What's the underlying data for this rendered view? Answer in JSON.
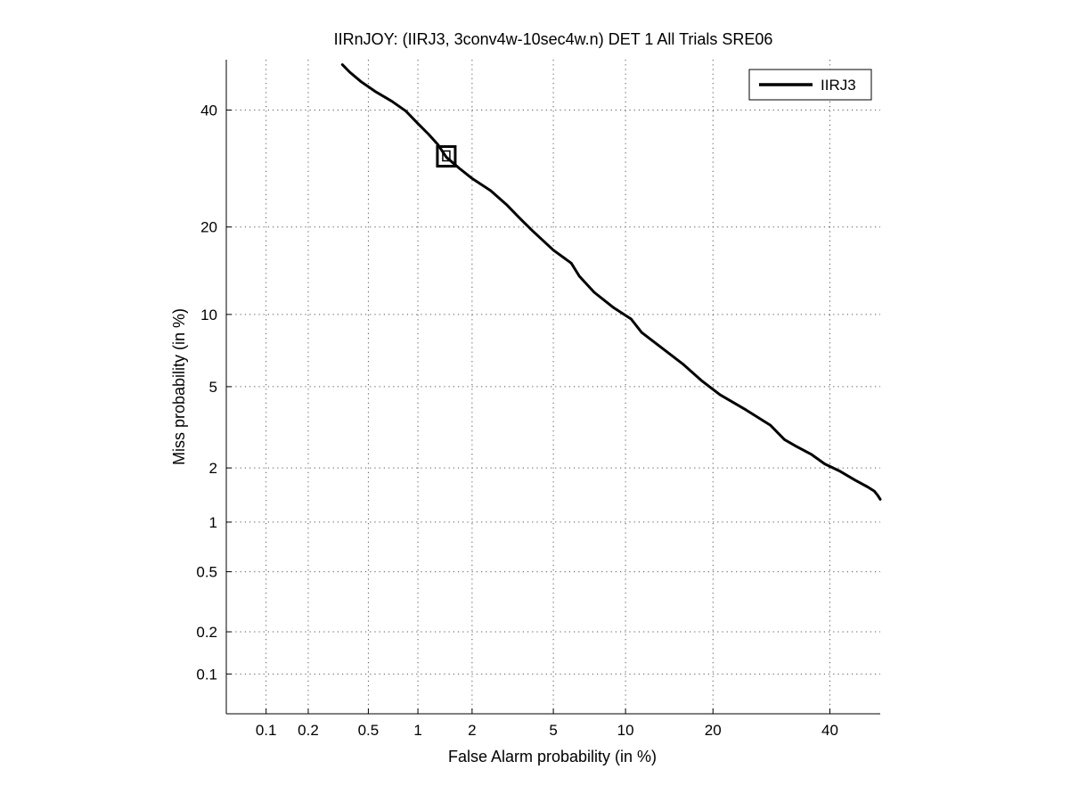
{
  "chart_data": {
    "type": "line",
    "title": "IIRnJOY: (IIRJ3, 3conv4w-10sec4w.n) DET 1 All Trials SRE06",
    "xlabel": "False Alarm probability (in %)",
    "ylabel": "Miss probability (in %)",
    "scale": "normal-deviate (probit) on both axes",
    "xlim": [
      0.05,
      50
    ],
    "ylim": [
      0.05,
      50
    ],
    "x_ticks": [
      0.1,
      0.2,
      0.5,
      1,
      2,
      5,
      10,
      20,
      40
    ],
    "x_tick_labels": [
      "0.1",
      "0.2",
      "0.5",
      "1",
      "2",
      "5",
      "10",
      "20",
      "40"
    ],
    "y_ticks": [
      0.1,
      0.2,
      0.5,
      1,
      2,
      5,
      10,
      20,
      40
    ],
    "y_tick_labels": [
      "0.1",
      "0.2",
      "0.5",
      "1",
      "2",
      "5",
      "10",
      "20",
      "40"
    ],
    "grid": true,
    "grid_style": "dotted",
    "legend_position": "top-right",
    "series": [
      {
        "name": "IIRJ3",
        "color": "#000000",
        "x": [
          0.34,
          0.38,
          0.45,
          0.55,
          0.7,
          0.85,
          1.0,
          1.15,
          1.3,
          1.45,
          1.7,
          2.0,
          2.5,
          3.0,
          3.5,
          4.0,
          5.0,
          6.0,
          6.5,
          7.5,
          9.0,
          10.5,
          11.5,
          13.5,
          16.0,
          18.5,
          21.0,
          25.0,
          29.0,
          31.5,
          33.5,
          36.5,
          39.0,
          42.0,
          45.0,
          47.5,
          48.8,
          49.5,
          50.0
        ],
        "y": [
          49.0,
          47.5,
          45.6,
          43.7,
          41.7,
          39.8,
          37.4,
          35.4,
          33.5,
          31.2,
          29.3,
          27.5,
          25.5,
          23.3,
          21.2,
          19.5,
          16.9,
          15.3,
          13.8,
          12.1,
          10.6,
          9.6,
          8.5,
          7.4,
          6.3,
          5.3,
          4.6,
          3.9,
          3.3,
          2.8,
          2.6,
          2.35,
          2.1,
          1.92,
          1.72,
          1.58,
          1.5,
          1.42,
          1.35
        ]
      }
    ],
    "marker": {
      "shape": "square",
      "x": 1.45,
      "y": 31.5
    }
  }
}
